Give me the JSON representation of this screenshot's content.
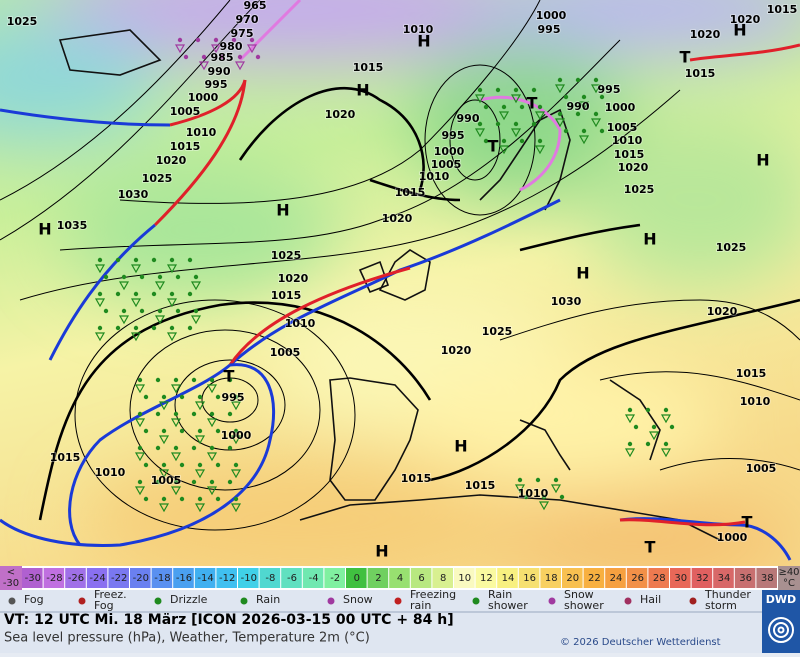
{
  "map": {
    "pressure_labels": [
      "1025",
      "965",
      "970",
      "975",
      "980",
      "985",
      "990",
      "995",
      "1000",
      "1005",
      "1010",
      "1015",
      "1020",
      "1025",
      "1030",
      "1035",
      "1015",
      "1020",
      "1010",
      "1000",
      "995",
      "990",
      "995",
      "1000",
      "1005",
      "1010",
      "1015",
      "1020",
      "1025",
      "1020",
      "1015",
      "1010",
      "1005",
      "995",
      "1000",
      "1015",
      "1010",
      "1005",
      "1015",
      "1015",
      "1010",
      "1025",
      "1020",
      "1030",
      "990",
      "995",
      "1000",
      "1005",
      "1010",
      "1015",
      "1020",
      "1025",
      "1025",
      "1020",
      "1015",
      "1010",
      "1005",
      "1000",
      "1020",
      "1015",
      "1020",
      "1015"
    ],
    "centers": [
      "H",
      "H",
      "H",
      "H",
      "H",
      "H",
      "H",
      "H",
      "H",
      "H",
      "T",
      "T",
      "T",
      "T",
      "T",
      "T"
    ]
  },
  "legend": {
    "temperature_scale": [
      "-30",
      "-28",
      "-26",
      "-24",
      "-22",
      "-20",
      "-18",
      "-16",
      "-14",
      "-12",
      "-10",
      "-8",
      "-6",
      "-4",
      "-2",
      "0",
      "2",
      "4",
      "6",
      "8",
      "10",
      "12",
      "14",
      "16",
      "18",
      "20",
      "22",
      "24",
      "26",
      "28",
      "30",
      "32",
      "34",
      "36",
      "38"
    ],
    "scale_low": {
      "top": "<",
      "bottom": "-30"
    },
    "scale_high": {
      "top": "≥40",
      "bottom": "°C"
    },
    "weather": [
      "Fog",
      "Freez. Fog",
      "Drizzle",
      "Rain",
      "Snow",
      "Freezing rain",
      "Rain shower",
      "Snow shower",
      "Hail",
      "Thunder storm"
    ]
  },
  "footer": {
    "valid_time": "VT: 12 UTC Mi.  18 März [ICON 2026-03-15  00 UTC + 84 h]",
    "subtitle": "Sea level pressure (hPa), Weather, Temperature 2m (°C)",
    "copyright": "© 2026 Deutscher Wetterdienst",
    "logo": "DWD"
  }
}
